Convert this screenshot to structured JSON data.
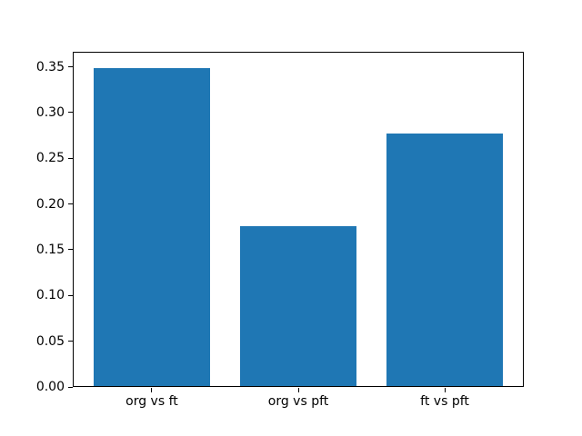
{
  "chart_data": {
    "type": "bar",
    "title": "",
    "xlabel": "",
    "ylabel": "",
    "categories": [
      "org vs ft",
      "org vs pft",
      "ft vs pft"
    ],
    "values": [
      0.349,
      0.176,
      0.277
    ],
    "bar_color": "#1f77b4",
    "axis_color": "#000000",
    "background_color": "#ffffff",
    "ylim": [
      0,
      0.3665
    ],
    "yticks": [
      0.0,
      0.05,
      0.1,
      0.15,
      0.2,
      0.25,
      0.3,
      0.35
    ],
    "ytick_decimals": 2,
    "bar_width_fraction": 0.8,
    "xlim": [
      -0.54,
      2.54
    ],
    "grid": false,
    "legend": "none"
  }
}
